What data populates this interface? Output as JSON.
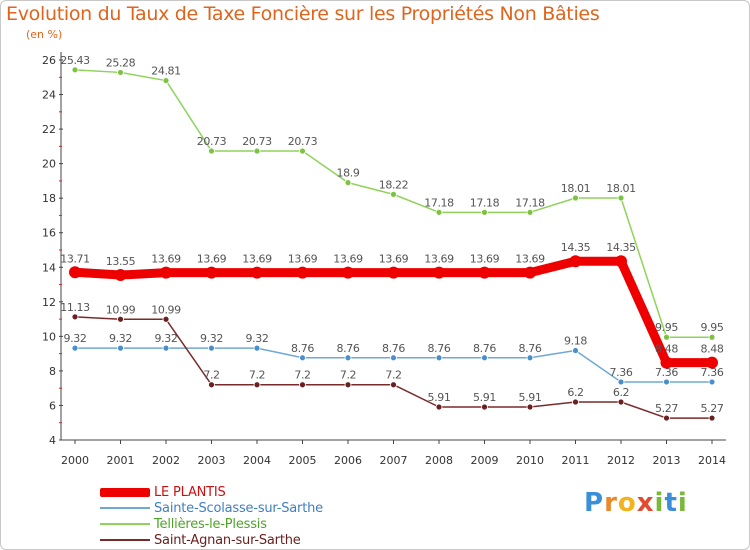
{
  "title": "Evolution du Taux de Taxe Foncière sur les Propriétés Non Bâties",
  "unit": "(en %)",
  "logo": {
    "letters": [
      "P",
      "r",
      "o",
      "x",
      "i",
      "t",
      "i"
    ],
    "colors": [
      "#3b8ed8",
      "#e8892a",
      "#f2b31c",
      "#e44a2f",
      "#7ab83a",
      "#3b8ed8",
      "#7ab83a"
    ]
  },
  "chart_data": {
    "type": "line",
    "title": "Evolution du Taux de Taxe Foncière sur les Propriétés Non Bâties",
    "ylabel": "(en %)",
    "xlabel": "",
    "ylim": [
      4,
      26
    ],
    "yticks": [
      "4",
      "6",
      "8",
      "10",
      "12",
      "14",
      "16",
      "18",
      "20",
      "22",
      "24",
      "26"
    ],
    "categories": [
      "2000",
      "2001",
      "2002",
      "2003",
      "2004",
      "2005",
      "2006",
      "2007",
      "2008",
      "2009",
      "2010",
      "2011",
      "2012",
      "2013",
      "2014"
    ],
    "series": [
      {
        "name": "Tellières-le-Plessis",
        "color": "#8fd35a",
        "marker": "#7cc43f",
        "values": [
          25.43,
          25.28,
          24.81,
          20.73,
          20.73,
          20.73,
          18.9,
          18.22,
          17.18,
          17.18,
          17.18,
          18.01,
          18.01,
          9.95,
          9.95
        ],
        "labels": [
          "25.43",
          "25.28",
          "24.81",
          "20.73",
          "20.73",
          "20.73",
          "18.9",
          "18.22",
          "17.18",
          "17.18",
          "17.18",
          "18.01",
          "18.01",
          "9.95",
          "9.95"
        ]
      },
      {
        "name": "Sainte-Scolasse-sur-Sarthe",
        "color": "#6fa8d6",
        "marker": "#4a8fca",
        "values": [
          9.32,
          9.32,
          9.32,
          9.32,
          9.32,
          8.76,
          8.76,
          8.76,
          8.76,
          8.76,
          8.76,
          9.18,
          7.36,
          7.36,
          7.36
        ],
        "labels": [
          "9.32",
          "9.32",
          "9.32",
          "9.32",
          "9.32",
          "8.76",
          "8.76",
          "8.76",
          "8.76",
          "8.76",
          "8.76",
          "9.18",
          "7.36",
          "7.36",
          "7.36"
        ]
      },
      {
        "name": "Saint-Agnan-sur-Sarthe",
        "color": "#7a2a2a",
        "marker": "#6a2020",
        "values": [
          11.13,
          10.99,
          10.99,
          7.2,
          7.2,
          7.2,
          7.2,
          7.2,
          5.91,
          5.91,
          5.91,
          6.2,
          6.2,
          5.27,
          5.27
        ],
        "labels": [
          "11.13",
          "10.99",
          "10.99",
          "7.2",
          "7.2",
          "7.2",
          "7.2",
          "7.2",
          "5.91",
          "5.91",
          "5.91",
          "6.2",
          "6.2",
          "5.27",
          "5.27"
        ]
      },
      {
        "name": "LE PLANTIS",
        "color": "#ee0000",
        "marker": "#ee0000",
        "values": [
          13.71,
          13.55,
          13.69,
          13.69,
          13.69,
          13.69,
          13.69,
          13.69,
          13.69,
          13.69,
          13.69,
          14.35,
          14.35,
          8.48,
          8.48
        ],
        "labels": [
          "13.71",
          "13.55",
          "13.69",
          "13.69",
          "13.69",
          "13.69",
          "13.69",
          "13.69",
          "13.69",
          "13.69",
          "13.69",
          "14.35",
          "14.35",
          "8.48",
          "8.48"
        ],
        "thick": true
      }
    ],
    "legend": [
      {
        "name": "LE PLANTIS",
        "color": "#ee0000",
        "text_color": "#cc1111",
        "thick": true
      },
      {
        "name": "Sainte-Scolasse-sur-Sarthe",
        "color": "#6fa8d6",
        "text_color": "#3f7fc0"
      },
      {
        "name": "Tellières-le-Plessis",
        "color": "#8fd35a",
        "text_color": "#4fa32a"
      },
      {
        "name": "Saint-Agnan-sur-Sarthe",
        "color": "#7a2a2a",
        "text_color": "#6a2020"
      }
    ],
    "grid": false,
    "legend_position": "bottom-left"
  }
}
